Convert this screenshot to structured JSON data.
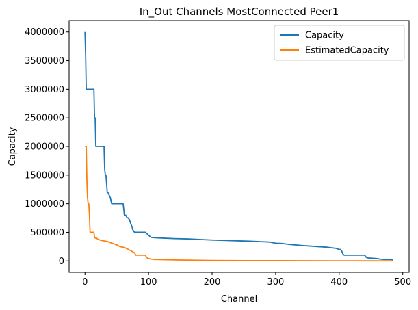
{
  "chart_data": {
    "type": "line",
    "title": "In_Out Channels MostConnected Peer1",
    "xlabel": "Channel",
    "ylabel": "Capacity",
    "xlim": [
      -25,
      510
    ],
    "ylim": [
      -200000,
      4200000
    ],
    "xticks": [
      0,
      100,
      200,
      300,
      400,
      500
    ],
    "yticks": [
      0,
      500000,
      1000000,
      1500000,
      2000000,
      2500000,
      3000000,
      3500000,
      4000000
    ],
    "grid": false,
    "legend_position": "top-right",
    "series": [
      {
        "name": "Capacity",
        "color": "#1f77b4",
        "x": [
          0,
          1,
          2,
          3,
          5,
          10,
          14,
          15,
          16,
          17,
          18,
          20,
          25,
          30,
          31,
          32,
          33,
          34,
          35,
          36,
          38,
          40,
          42,
          44,
          45,
          50,
          55,
          60,
          61,
          62,
          64,
          66,
          68,
          70,
          72,
          74,
          75,
          78,
          80,
          82,
          85,
          90,
          95,
          100,
          103,
          105,
          110,
          120,
          140,
          160,
          180,
          200,
          230,
          260,
          290,
          300,
          310,
          320,
          340,
          360,
          380,
          395,
          400,
          402,
          404,
          406,
          408,
          410,
          430,
          440,
          443,
          446,
          450,
          460,
          465,
          470,
          480,
          485
        ],
        "y": [
          4000000,
          3600000,
          3000000,
          3000000,
          3000000,
          3000000,
          3000000,
          2500000,
          2500000,
          2000000,
          2000000,
          2000000,
          2000000,
          2000000,
          1600000,
          1500000,
          1500000,
          1350000,
          1200000,
          1200000,
          1150000,
          1100000,
          1000000,
          1000000,
          1000000,
          1000000,
          1000000,
          1000000,
          900000,
          800000,
          800000,
          760000,
          750000,
          720000,
          650000,
          600000,
          550000,
          500000,
          500000,
          500000,
          500000,
          500000,
          500000,
          450000,
          420000,
          410000,
          405000,
          400000,
          390000,
          385000,
          375000,
          365000,
          355000,
          345000,
          330000,
          310000,
          305000,
          290000,
          270000,
          255000,
          240000,
          220000,
          200000,
          200000,
          170000,
          120000,
          100000,
          100000,
          100000,
          100000,
          60000,
          50000,
          50000,
          40000,
          30000,
          25000,
          25000,
          20000
        ]
      },
      {
        "name": "EstimatedCapacity",
        "color": "#ff7f0e",
        "x": [
          0,
          1,
          2,
          3,
          4,
          5,
          6,
          7,
          8,
          10,
          12,
          14,
          15,
          16,
          17,
          18,
          20,
          25,
          30,
          35,
          40,
          45,
          50,
          55,
          60,
          65,
          70,
          75,
          78,
          80,
          82,
          85,
          90,
          95,
          97,
          100,
          105,
          110,
          130,
          150,
          180,
          200,
          250,
          300,
          350,
          400,
          450,
          485
        ],
        "y": [
          2000000,
          2000000,
          2000000,
          1400000,
          1100000,
          1000000,
          1000000,
          800000,
          500000,
          500000,
          500000,
          500000,
          420000,
          400000,
          400000,
          400000,
          380000,
          360000,
          350000,
          340000,
          320000,
          300000,
          280000,
          250000,
          240000,
          220000,
          190000,
          160000,
          140000,
          100000,
          100000,
          100000,
          100000,
          100000,
          60000,
          40000,
          30000,
          25000,
          20000,
          15000,
          10000,
          8000,
          5000,
          4000,
          3000,
          2000,
          1000,
          0
        ]
      }
    ]
  }
}
